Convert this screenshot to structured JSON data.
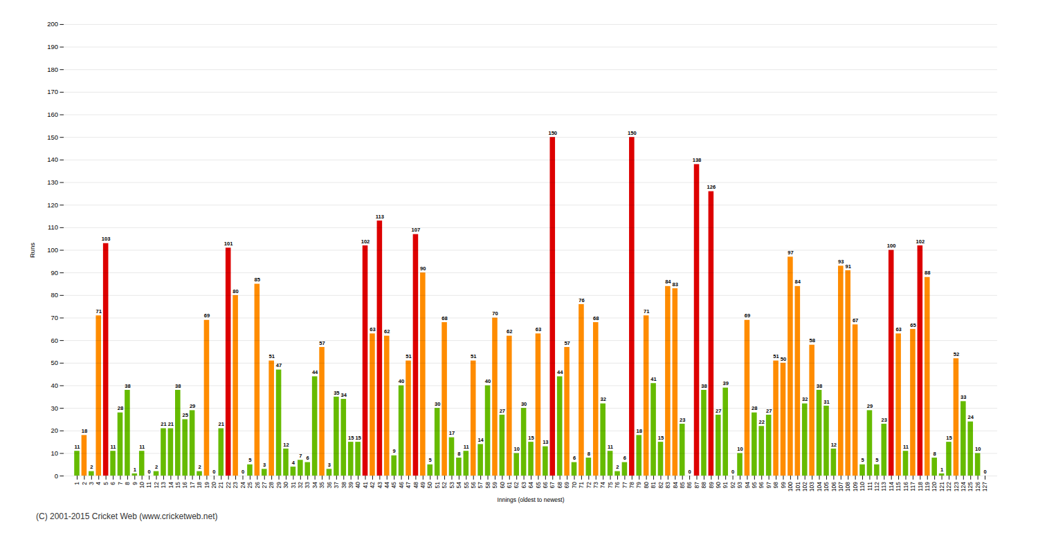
{
  "chart_data": {
    "type": "bar",
    "xlabel": "Innings (oldest to newest)",
    "ylabel": "Runs",
    "caption": "(C) 2001-2015 Cricket Web (www.cricketweb.net)",
    "categories": [
      "1",
      "2",
      "3",
      "4",
      "5",
      "6",
      "7",
      "8",
      "9",
      "10",
      "11",
      "12",
      "13",
      "14",
      "15",
      "16",
      "17",
      "18",
      "19",
      "20",
      "21",
      "22",
      "23",
      "24",
      "25",
      "26",
      "27",
      "28",
      "29",
      "30",
      "31",
      "32",
      "33",
      "34",
      "35",
      "36",
      "37",
      "38",
      "39",
      "40",
      "41",
      "42",
      "43",
      "44",
      "45",
      "46",
      "47",
      "48",
      "49",
      "50",
      "51",
      "52",
      "53",
      "54",
      "55",
      "56",
      "57",
      "58",
      "59",
      "60",
      "61",
      "62",
      "63",
      "64",
      "65",
      "66",
      "67",
      "68",
      "69",
      "70",
      "71",
      "72",
      "73",
      "74",
      "75",
      "76",
      "77",
      "78",
      "79",
      "80",
      "81",
      "82",
      "83",
      "84",
      "85",
      "86",
      "87",
      "88",
      "89",
      "90",
      "91",
      "92",
      "93",
      "94",
      "95",
      "96",
      "97",
      "98",
      "99",
      "100",
      "101",
      "102",
      "103",
      "104",
      "105",
      "106",
      "107",
      "108",
      "109",
      "110",
      "111",
      "112",
      "113",
      "114",
      "115",
      "116",
      "117",
      "118",
      "119",
      "120",
      "121",
      "122",
      "123",
      "124",
      "125",
      "126",
      "127"
    ],
    "values": [
      11,
      18,
      2,
      71,
      103,
      11,
      28,
      38,
      1,
      11,
      0,
      2,
      21,
      21,
      38,
      25,
      29,
      2,
      69,
      0,
      21,
      101,
      80,
      0,
      5,
      85,
      3,
      51,
      47,
      12,
      4,
      7,
      6,
      44,
      57,
      3,
      35,
      34,
      15,
      15,
      102,
      63,
      113,
      62,
      9,
      40,
      51,
      107,
      90,
      5,
      30,
      68,
      17,
      8,
      11,
      51,
      14,
      40,
      70,
      27,
      62,
      10,
      30,
      15,
      63,
      13,
      150,
      44,
      57,
      6,
      76,
      8,
      68,
      32,
      11,
      2,
      6,
      150,
      18,
      71,
      41,
      15,
      84,
      83,
      23,
      0,
      138,
      38,
      126,
      27,
      39,
      0,
      10,
      69,
      28,
      22,
      27,
      51,
      50,
      97,
      84,
      32,
      58,
      38,
      31,
      12,
      93,
      91,
      67,
      5,
      29,
      5,
      23,
      100,
      63,
      11,
      65,
      102,
      88,
      8,
      1,
      15,
      52,
      33,
      24,
      10,
      0
    ],
    "colors": [
      "#66bb00",
      "#ff8c00",
      "#66bb00",
      "#ff8c00",
      "#dd0000",
      "#66bb00",
      "#66bb00",
      "#66bb00",
      "#66bb00",
      "#66bb00",
      "#66bb00",
      "#66bb00",
      "#66bb00",
      "#66bb00",
      "#66bb00",
      "#66bb00",
      "#66bb00",
      "#66bb00",
      "#ff8c00",
      "#66bb00",
      "#66bb00",
      "#dd0000",
      "#ff8c00",
      "#66bb00",
      "#66bb00",
      "#ff8c00",
      "#66bb00",
      "#ff8c00",
      "#66bb00",
      "#66bb00",
      "#66bb00",
      "#66bb00",
      "#66bb00",
      "#66bb00",
      "#ff8c00",
      "#66bb00",
      "#66bb00",
      "#66bb00",
      "#66bb00",
      "#66bb00",
      "#dd0000",
      "#ff8c00",
      "#dd0000",
      "#ff8c00",
      "#66bb00",
      "#66bb00",
      "#ff8c00",
      "#dd0000",
      "#ff8c00",
      "#66bb00",
      "#66bb00",
      "#ff8c00",
      "#66bb00",
      "#66bb00",
      "#66bb00",
      "#ff8c00",
      "#66bb00",
      "#66bb00",
      "#ff8c00",
      "#66bb00",
      "#ff8c00",
      "#66bb00",
      "#66bb00",
      "#66bb00",
      "#ff8c00",
      "#66bb00",
      "#dd0000",
      "#66bb00",
      "#ff8c00",
      "#66bb00",
      "#ff8c00",
      "#66bb00",
      "#ff8c00",
      "#66bb00",
      "#66bb00",
      "#66bb00",
      "#66bb00",
      "#dd0000",
      "#66bb00",
      "#ff8c00",
      "#66bb00",
      "#66bb00",
      "#ff8c00",
      "#ff8c00",
      "#66bb00",
      "#66bb00",
      "#dd0000",
      "#66bb00",
      "#dd0000",
      "#66bb00",
      "#66bb00",
      "#66bb00",
      "#66bb00",
      "#ff8c00",
      "#66bb00",
      "#66bb00",
      "#66bb00",
      "#ff8c00",
      "#ff8c00",
      "#ff8c00",
      "#ff8c00",
      "#66bb00",
      "#ff8c00",
      "#66bb00",
      "#66bb00",
      "#66bb00",
      "#ff8c00",
      "#ff8c00",
      "#ff8c00",
      "#66bb00",
      "#66bb00",
      "#66bb00",
      "#66bb00",
      "#dd0000",
      "#ff8c00",
      "#66bb00",
      "#ff8c00",
      "#dd0000",
      "#ff8c00",
      "#66bb00",
      "#66bb00",
      "#66bb00",
      "#ff8c00",
      "#66bb00",
      "#66bb00",
      "#66bb00",
      "#66bb00"
    ],
    "ylim": [
      0,
      200
    ],
    "yticks": [
      0,
      10,
      20,
      30,
      40,
      50,
      60,
      70,
      80,
      90,
      100,
      110,
      120,
      130,
      140,
      150,
      160,
      170,
      180,
      190,
      200
    ],
    "grid": true,
    "data_labels": true
  }
}
